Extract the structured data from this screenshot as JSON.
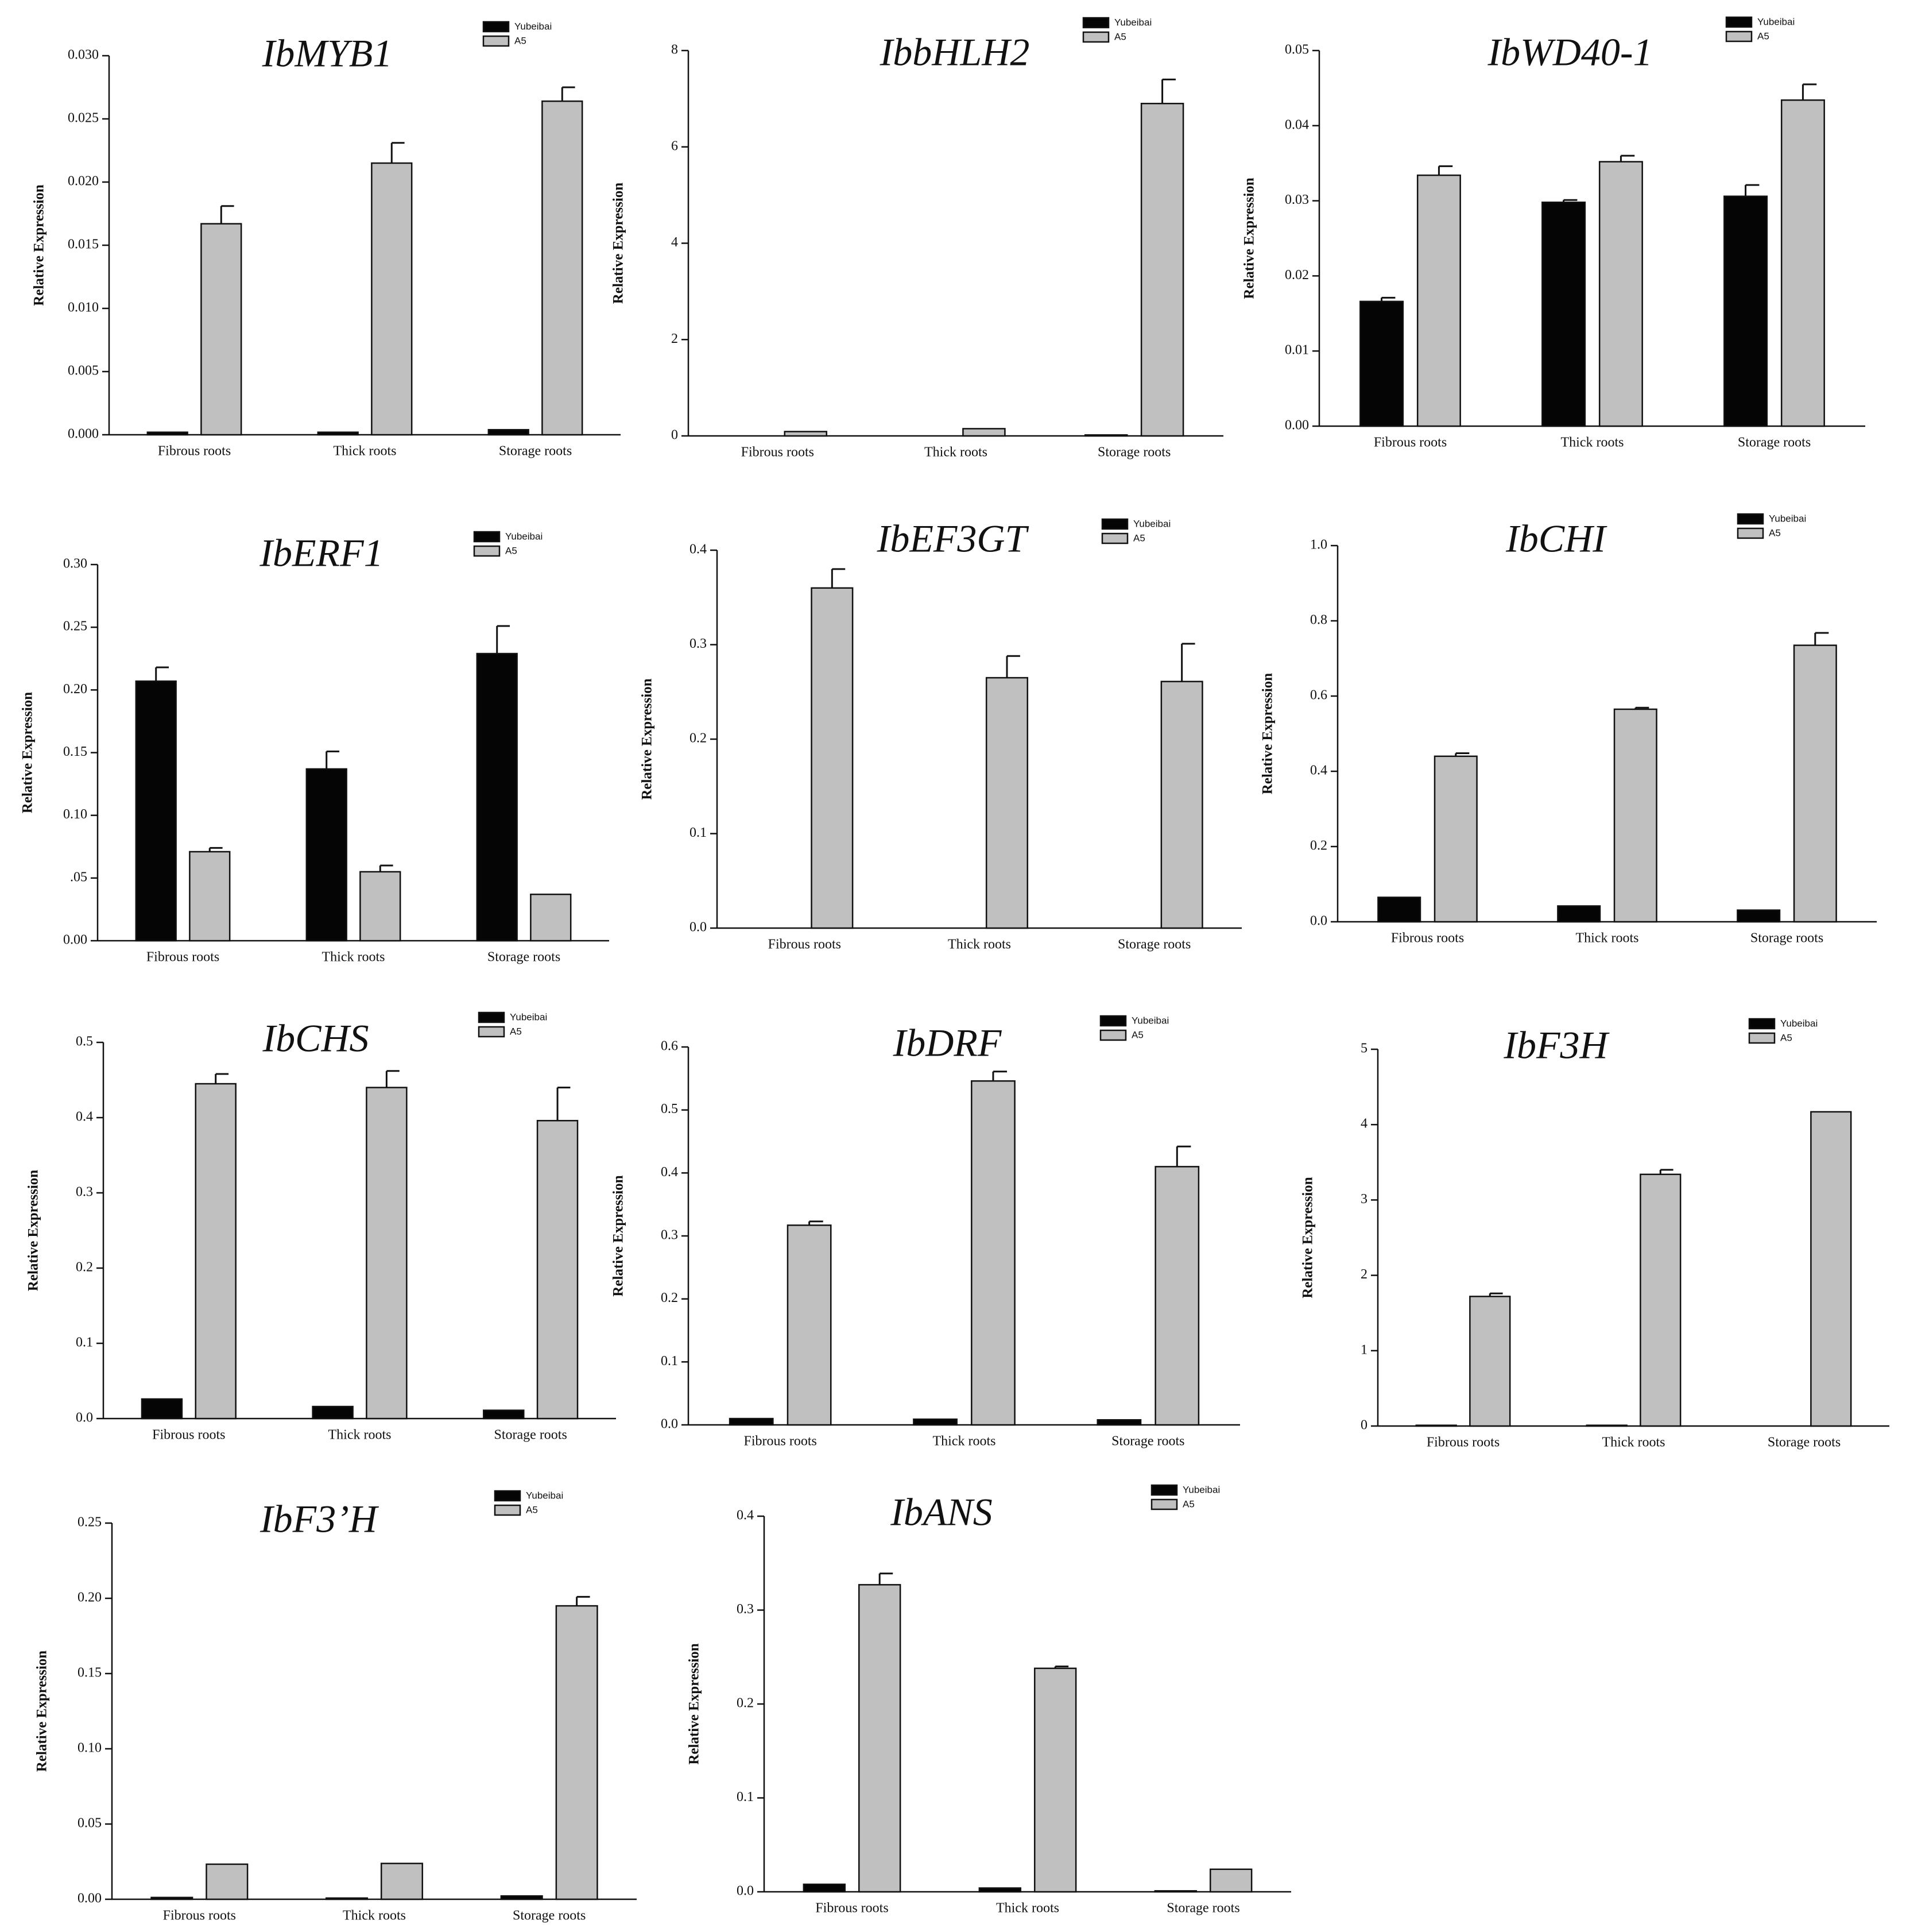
{
  "figure": {
    "series_names": [
      "Yubeibai",
      "A5"
    ],
    "series_colors": [
      "#050505",
      "#c0c0c0"
    ],
    "y_axis_title": "Relative Expression"
  },
  "chart_data": [
    {
      "type": "bar",
      "title": "IbMYB1",
      "ylabel": "Relative Expression",
      "categories": [
        "Fibrous roots",
        "Thick roots",
        "Storage roots"
      ],
      "ylim": [
        0,
        0.03
      ],
      "yticks": [
        "0.000",
        "0.005",
        "0.010",
        "0.015",
        "0.020",
        "0.025",
        "0.030"
      ],
      "series": [
        {
          "name": "Yubeibai",
          "values": [
            0.0002,
            0.0002,
            0.0004
          ],
          "errors": [
            0,
            0,
            0
          ]
        },
        {
          "name": "A5",
          "values": [
            0.0167,
            0.0215,
            0.0264
          ],
          "errors": [
            0.0014,
            0.0016,
            0.0011
          ]
        }
      ]
    },
    {
      "type": "bar",
      "title": "IbbHLH2",
      "ylabel": "Relative Expression",
      "categories": [
        "Fibrous roots",
        "Thick roots",
        "Storage roots"
      ],
      "ylim": [
        0,
        8
      ],
      "yticks": [
        "0",
        "2",
        "4",
        "6",
        "8"
      ],
      "series": [
        {
          "name": "Yubeibai",
          "values": [
            0,
            0,
            0.02
          ],
          "errors": [
            0,
            0,
            0
          ]
        },
        {
          "name": "A5",
          "values": [
            0.09,
            0.15,
            6.9
          ],
          "errors": [
            0,
            0,
            0.5
          ]
        }
      ]
    },
    {
      "type": "bar",
      "title": "IbWD40-1",
      "ylabel": "Relative Expression",
      "categories": [
        "Fibrous roots",
        "Thick roots",
        "Storage roots"
      ],
      "ylim": [
        0,
        0.05
      ],
      "yticks": [
        "0.00",
        "0.01",
        "0.02",
        "0.03",
        "0.04",
        "0.05"
      ],
      "series": [
        {
          "name": "Yubeibai",
          "values": [
            0.0166,
            0.0298,
            0.0306
          ],
          "errors": [
            0.0005,
            0.0003,
            0.0015
          ]
        },
        {
          "name": "A5",
          "values": [
            0.0334,
            0.0352,
            0.0434
          ],
          "errors": [
            0.0012,
            0.0008,
            0.0021
          ]
        }
      ]
    },
    {
      "type": "bar",
      "title": "IbERF1",
      "ylabel": "Relative Expression",
      "categories": [
        "Fibrous roots",
        "Thick roots",
        "Storage roots"
      ],
      "ylim": [
        0,
        0.3
      ],
      "yticks": [
        "0.00",
        ".05",
        "0.10",
        "0.15",
        "0.20",
        "0.25",
        "0.30"
      ],
      "series": [
        {
          "name": "Yubeibai",
          "values": [
            0.207,
            0.137,
            0.229
          ],
          "errors": [
            0.011,
            0.014,
            0.022
          ]
        },
        {
          "name": "A5",
          "values": [
            0.071,
            0.055,
            0.037
          ],
          "errors": [
            0.003,
            0.005,
            0
          ]
        }
      ]
    },
    {
      "type": "bar",
      "title": "IbEF3GT",
      "ylabel": "Relative Expression",
      "categories": [
        "Fibrous roots",
        "Thick roots",
        "Storage roots"
      ],
      "ylim": [
        0,
        0.4
      ],
      "yticks": [
        "0.0",
        "0.1",
        "0.2",
        "0.3",
        "0.4"
      ],
      "series": [
        {
          "name": "Yubeibai",
          "values": [
            0,
            0,
            0
          ],
          "errors": [
            0,
            0,
            0
          ]
        },
        {
          "name": "A5",
          "values": [
            0.36,
            0.265,
            0.261
          ],
          "errors": [
            0.02,
            0.023,
            0.04
          ]
        }
      ]
    },
    {
      "type": "bar",
      "title": "IbCHI",
      "ylabel": "Relative Expression",
      "categories": [
        "Fibrous roots",
        "Thick roots",
        "Storage roots"
      ],
      "ylim": [
        0,
        1.0
      ],
      "yticks": [
        "0.0",
        "0.2",
        "0.4",
        "0.6",
        "0.8",
        "1.0"
      ],
      "series": [
        {
          "name": "Yubeibai",
          "values": [
            0.065,
            0.042,
            0.031
          ],
          "errors": [
            0,
            0,
            0
          ]
        },
        {
          "name": "A5",
          "values": [
            0.44,
            0.565,
            0.735
          ],
          "errors": [
            0.008,
            0.004,
            0.033
          ]
        }
      ]
    },
    {
      "type": "bar",
      "title": "IbCHS",
      "ylabel": "Relative Expression",
      "categories": [
        "Fibrous roots",
        "Thick roots",
        "Storage roots"
      ],
      "ylim": [
        0,
        0.5
      ],
      "yticks": [
        "0.0",
        "0.1",
        "0.2",
        "0.3",
        "0.4",
        "0.5"
      ],
      "series": [
        {
          "name": "Yubeibai",
          "values": [
            0.026,
            0.016,
            0.011
          ],
          "errors": [
            0,
            0,
            0
          ]
        },
        {
          "name": "A5",
          "values": [
            0.445,
            0.44,
            0.396
          ],
          "errors": [
            0.013,
            0.022,
            0.044
          ]
        }
      ]
    },
    {
      "type": "bar",
      "title": "IbDRF",
      "ylabel": "Relative Expression",
      "categories": [
        "Fibrous roots",
        "Thick roots",
        "Storage roots"
      ],
      "ylim": [
        0,
        0.6
      ],
      "yticks": [
        "0.0",
        "0.1",
        "0.2",
        "0.3",
        "0.4",
        "0.5",
        "0.6"
      ],
      "series": [
        {
          "name": "Yubeibai",
          "values": [
            0.01,
            0.009,
            0.008
          ],
          "errors": [
            0,
            0,
            0
          ]
        },
        {
          "name": "A5",
          "values": [
            0.317,
            0.546,
            0.41
          ],
          "errors": [
            0.006,
            0.015,
            0.032
          ]
        }
      ]
    },
    {
      "type": "bar",
      "title": "IbF3H",
      "ylabel": "Relative Expression",
      "categories": [
        "Fibrous roots",
        "Thick roots",
        "Storage roots"
      ],
      "ylim": [
        0,
        5
      ],
      "yticks": [
        "0",
        "1",
        "2",
        "3",
        "4",
        "5"
      ],
      "series": [
        {
          "name": "Yubeibai",
          "values": [
            0.01,
            0.01,
            0
          ],
          "errors": [
            0,
            0,
            0
          ]
        },
        {
          "name": "A5",
          "values": [
            1.72,
            3.34,
            4.17
          ],
          "errors": [
            0.04,
            0.06,
            0
          ]
        }
      ]
    },
    {
      "type": "bar",
      "title": "IbF3’H",
      "ylabel": "Relative Expression",
      "categories": [
        "Fibrous roots",
        "Thick roots",
        "Storage roots"
      ],
      "ylim": [
        0,
        0.25
      ],
      "yticks": [
        "0.00",
        "0.05",
        "0.10",
        "0.15",
        "0.20",
        "0.25"
      ],
      "series": [
        {
          "name": "Yubeibai",
          "values": [
            0.0012,
            0.0008,
            0.0022
          ],
          "errors": [
            0,
            0,
            0
          ]
        },
        {
          "name": "A5",
          "values": [
            0.0233,
            0.0238,
            0.195
          ],
          "errors": [
            0,
            0,
            0.006
          ]
        }
      ]
    },
    {
      "type": "bar",
      "title": "IbANS",
      "ylabel": "Relative Expression",
      "categories": [
        "Fibrous roots",
        "Thick roots",
        "Storage roots"
      ],
      "ylim": [
        0,
        0.4
      ],
      "yticks": [
        "0.0",
        "0.1",
        "0.2",
        "0.3",
        "0.4"
      ],
      "series": [
        {
          "name": "Yubeibai",
          "values": [
            0.008,
            0.004,
            0.001
          ],
          "errors": [
            0,
            0,
            0
          ]
        },
        {
          "name": "A5",
          "values": [
            0.327,
            0.238,
            0.024
          ],
          "errors": [
            0.012,
            0.002,
            0
          ]
        }
      ]
    }
  ]
}
